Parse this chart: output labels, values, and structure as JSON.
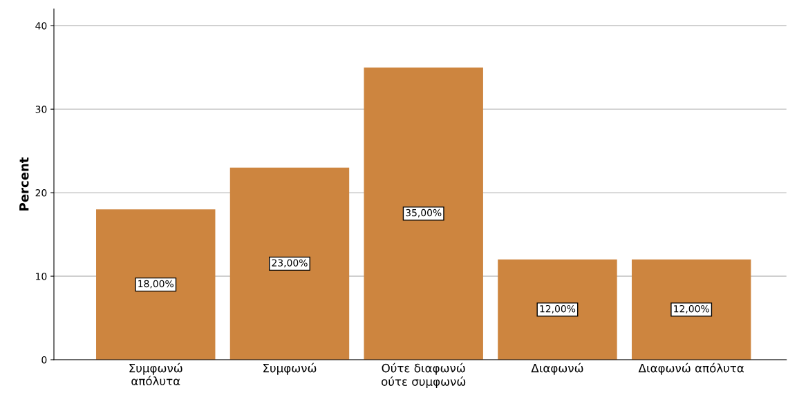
{
  "chart_data": {
    "type": "bar",
    "ylabel": "Percent",
    "categories": [
      "Συμφωνώ\nαπόλυτα",
      "Συμφωνώ",
      "Ούτε διαφωνώ\nούτε συμφωνώ",
      "Διαφωνώ",
      "Διαφωνώ απόλυτα"
    ],
    "values": [
      18,
      23,
      35,
      12,
      12
    ],
    "value_labels": [
      "18,00%",
      "23,00%",
      "35,00%",
      "12,00%",
      "12,00%"
    ],
    "color": "#cd853f",
    "ylim": [
      0,
      42
    ],
    "yticks": [
      0,
      10,
      20,
      30,
      40
    ],
    "grid": "y"
  }
}
